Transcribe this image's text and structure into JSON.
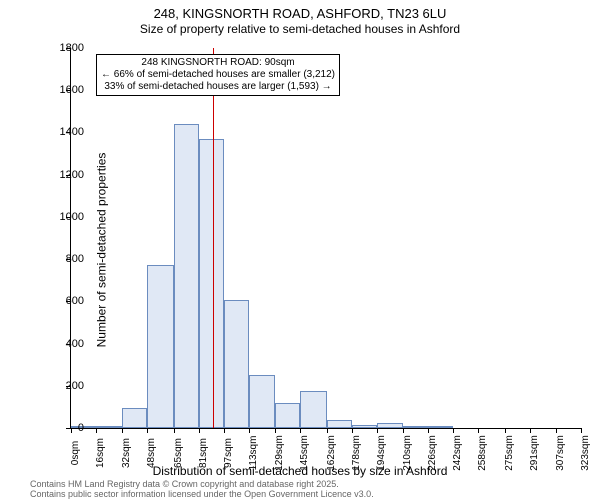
{
  "title_main": "248, KINGSNORTH ROAD, ASHFORD, TN23 6LU",
  "title_sub": "Size of property relative to semi-detached houses in Ashford",
  "ylabel": "Number of semi-detached properties",
  "xlabel": "Distribution of semi-detached houses by size in Ashford",
  "footer1": "Contains HM Land Registry data © Crown copyright and database right 2025.",
  "footer2": "Contains public sector information licensed under the Open Government Licence v3.0.",
  "chart": {
    "type": "histogram",
    "ylim": [
      0,
      1800
    ],
    "yticks": [
      0,
      200,
      400,
      600,
      800,
      1000,
      1200,
      1400,
      1600,
      1800
    ],
    "xlim": [
      0,
      323
    ],
    "xticks": [
      0,
      16,
      32,
      48,
      65,
      81,
      97,
      113,
      129,
      145,
      162,
      178,
      194,
      210,
      226,
      242,
      258,
      275,
      291,
      307,
      323
    ],
    "xtick_unit": "sqm",
    "bar_fill": "#e0e8f5",
    "bar_border": "#6b8cbf",
    "reference_line_x": 90,
    "reference_line_color": "#cc0000",
    "bars": [
      {
        "x0": 0,
        "x1": 16,
        "y": 5
      },
      {
        "x0": 16,
        "x1": 32,
        "y": 10
      },
      {
        "x0": 32,
        "x1": 48,
        "y": 95
      },
      {
        "x0": 48,
        "x1": 65,
        "y": 770
      },
      {
        "x0": 65,
        "x1": 81,
        "y": 1440
      },
      {
        "x0": 81,
        "x1": 97,
        "y": 1370
      },
      {
        "x0": 97,
        "x1": 113,
        "y": 605
      },
      {
        "x0": 113,
        "x1": 129,
        "y": 250
      },
      {
        "x0": 129,
        "x1": 145,
        "y": 120
      },
      {
        "x0": 145,
        "x1": 162,
        "y": 175
      },
      {
        "x0": 162,
        "x1": 178,
        "y": 40
      },
      {
        "x0": 178,
        "x1": 194,
        "y": 15
      },
      {
        "x0": 194,
        "x1": 210,
        "y": 22
      },
      {
        "x0": 210,
        "x1": 226,
        "y": 8
      },
      {
        "x0": 226,
        "x1": 242,
        "y": 5
      },
      {
        "x0": 242,
        "x1": 258,
        "y": 2
      },
      {
        "x0": 258,
        "x1": 275,
        "y": 2
      },
      {
        "x0": 275,
        "x1": 291,
        "y": 0
      },
      {
        "x0": 291,
        "x1": 307,
        "y": 2
      },
      {
        "x0": 307,
        "x1": 323,
        "y": 1
      }
    ],
    "annotation": {
      "line1": "248 KINGSNORTH ROAD: 90sqm",
      "line2": "← 66% of semi-detached houses are smaller (3,212)",
      "line3": "33% of semi-detached houses are larger (1,593) →"
    }
  }
}
